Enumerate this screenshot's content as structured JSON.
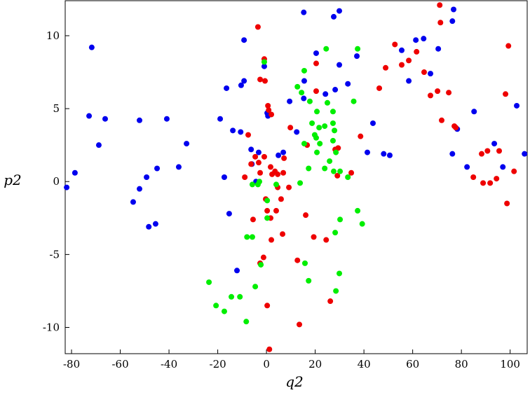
{
  "chart_data": {
    "type": "scatter",
    "xlabel": "q2",
    "ylabel": "p2",
    "xlim": [
      -82.6,
      107
    ],
    "ylim": [
      -11.8,
      12.4
    ],
    "xticks": [
      -80,
      -60,
      -40,
      -20,
      0,
      20,
      40,
      60,
      80,
      100
    ],
    "yticks": [
      -10,
      -5,
      0,
      5,
      10
    ],
    "series": [
      {
        "color": "#0000ee",
        "x": [
          -82,
          -78.6,
          -71.7,
          -72.8,
          -68.8,
          -66.2,
          -54.7,
          -52.1,
          -52.1,
          -49.2,
          -48.3,
          -45.5,
          -44.9,
          -40.9,
          -36,
          -32.8,
          -19,
          -17.3,
          -16.4,
          -15.3,
          -13.8,
          -12.1,
          -10.6,
          -10.4,
          -9.2,
          -9.2,
          -6.3,
          -6,
          -4.3,
          -3.2,
          -0.9,
          0.3,
          0.6,
          4.9,
          6.9,
          9.5,
          12.4,
          15.3,
          15.3,
          15.5,
          20.4,
          24.2,
          27.6,
          28.2,
          29.9,
          29.9,
          33.4,
          37.1,
          41.4,
          43.7,
          48.1,
          50.6,
          55.5,
          58.4,
          61.3,
          64.5,
          67.3,
          70.5,
          76.3,
          76.8,
          76.3,
          78.3,
          82.3,
          85.2,
          93.5,
          97,
          102.7,
          105.9
        ],
        "values": [
          -0.4,
          0.6,
          9.2,
          4.5,
          2.5,
          4.3,
          -1.4,
          -0.5,
          4.2,
          0.3,
          -3.1,
          -2.9,
          0.9,
          4.3,
          1,
          2.6,
          4.3,
          0.3,
          6.4,
          -2.2,
          3.5,
          -6.1,
          3.4,
          6.6,
          6.9,
          9.7,
          2.2,
          1.2,
          0,
          2,
          7.9,
          4.7,
          4.5,
          1.8,
          2,
          5.5,
          3.4,
          5.7,
          11.6,
          6.9,
          8.8,
          6,
          11.3,
          6.3,
          11.7,
          8,
          6.7,
          8.6,
          2,
          4,
          1.9,
          1.8,
          9,
          6.9,
          9.7,
          9.8,
          7.4,
          9.1,
          11,
          11.8,
          1.9,
          3.6,
          1,
          4.8,
          2.6,
          1,
          5.2,
          1.9
        ]
      },
      {
        "color": "#ee0000",
        "x": [
          -3.5,
          -0.9,
          -2.6,
          -0.6,
          -7.5,
          -4.6,
          -3.2,
          -2.6,
          -8.9,
          -6.3,
          -0.9,
          0.6,
          0.9,
          2,
          1.7,
          2.3,
          3.5,
          4.6,
          4.6,
          7.2,
          6.9,
          9.2,
          6,
          -0.3,
          0.3,
          1.7,
          4,
          6.6,
          -5.5,
          2,
          -1.2,
          -2.6,
          0.3,
          1.2,
          9.8,
          12.7,
          13.5,
          16.1,
          19.4,
          20.4,
          20.4,
          16.7,
          24.5,
          26.2,
          28.2,
          29.4,
          29.1,
          34.8,
          38.6,
          46.3,
          48.9,
          52.7,
          55.5,
          58.4,
          61.6,
          64.7,
          67.3,
          70.2,
          71.1,
          71.4,
          71.9,
          74.8,
          77.1,
          77.7,
          84.9,
          88.3,
          88.9,
          90.7,
          91.8,
          94.4,
          95.5,
          98.1,
          98.7,
          99.3,
          101.6
        ],
        "values": [
          10.6,
          8.4,
          7,
          6.9,
          3.2,
          1.7,
          1.3,
          0.6,
          0.3,
          1.2,
          1.7,
          5.2,
          4.9,
          4.6,
          1,
          0.5,
          0.7,
          0.5,
          -0.4,
          1.6,
          0.6,
          -0.4,
          -1.2,
          -1.2,
          -2,
          -2.5,
          -2,
          -3.6,
          -2.6,
          -4,
          -5.2,
          -5.6,
          -8.5,
          -11.5,
          3.7,
          -5.4,
          -9.8,
          -2.3,
          -3.8,
          8.1,
          6.2,
          2.5,
          -4,
          -8.2,
          2.2,
          2.3,
          0.4,
          0.6,
          3.1,
          6.4,
          7.8,
          9.4,
          8,
          8.3,
          8.9,
          7.5,
          5.9,
          6.2,
          12.1,
          10.9,
          4.2,
          6.1,
          3.8,
          3.7,
          0.3,
          1.9,
          -0.1,
          2.1,
          -0.1,
          0.2,
          2.1,
          6,
          -1.5,
          9.3,
          0.7
        ]
      },
      {
        "color": "#00ee00",
        "x": [
          -0.9,
          -5.8,
          -3.5,
          -2.9,
          0.3,
          4,
          0.3,
          -8,
          -5.8,
          -2.3,
          -4.6,
          -23.6,
          -20.7,
          -17.3,
          -14.4,
          -10.9,
          -8.3,
          12.7,
          14.4,
          15.5,
          17.8,
          18.7,
          20.7,
          19.8,
          21.6,
          23.9,
          27.3,
          24.5,
          37.4,
          35.8,
          15.5,
          20.4,
          21.9,
          27.3,
          27.9,
          27.3,
          28.5,
          23.9,
          25.9,
          20.7,
          17.3,
          13.8,
          27.6,
          30.2,
          33.4,
          37.4,
          39.3,
          30.2,
          28.2,
          15.8,
          17.3,
          29.9,
          28.5,
          25
        ],
        "values": [
          8.2,
          -0.2,
          -0.2,
          0,
          -1.3,
          -0.2,
          -2.5,
          -3.8,
          -3.8,
          -5.7,
          -7.2,
          -6.9,
          -8.5,
          -8.9,
          -7.9,
          -7.9,
          -9.6,
          6.5,
          6.1,
          7.6,
          5.5,
          4,
          4.8,
          3.2,
          3.7,
          3.8,
          4.8,
          9.1,
          9.1,
          5.5,
          2.6,
          3,
          2.6,
          4,
          3.5,
          2.8,
          2,
          0.9,
          1.4,
          2,
          0.9,
          -0.1,
          0.7,
          0.7,
          0.3,
          -2,
          -2.9,
          -2.6,
          -3.5,
          -5.6,
          -6.8,
          -6.3,
          -7.5,
          5.4
        ]
      }
    ]
  }
}
